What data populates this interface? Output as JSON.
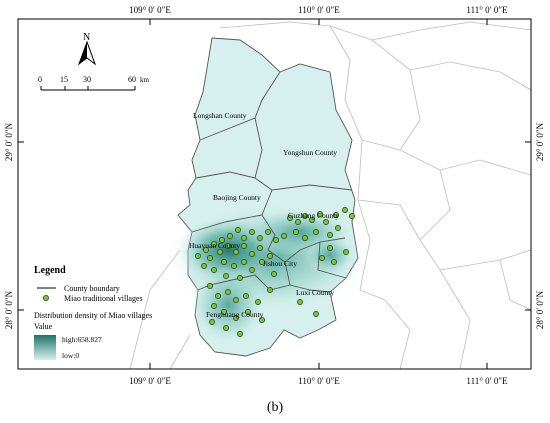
{
  "map": {
    "top_ticks": [
      "109° 0′ 0″E",
      "110° 0′ 0″E",
      "111° 0′ 0″E"
    ],
    "bottom_ticks": [
      "109° 0′ 0″E",
      "110° 0′ 0″E",
      "111° 0′ 0″E"
    ],
    "left_ticks": [
      "29° 0′ 0″N",
      "28° 0′ 0″N"
    ],
    "right_ticks": [
      "29° 0′ 0″N",
      "28° 0′ 0″N"
    ],
    "north_arrow_label": "N",
    "scalebar": {
      "ticks": [
        "0",
        "15",
        "30",
        "60"
      ],
      "unit": "km"
    },
    "counties": {
      "longshan": "Longshan County",
      "yongshun": "Yongshun County",
      "baojing": "Baojing County",
      "guzhang": "Guzhang County",
      "huayuan": "Huayuan County",
      "jishou": "Jishou City",
      "luxi": "Luxi County",
      "fenghuang": "Fenghuang County"
    },
    "legend": {
      "title": "Legend",
      "boundary": "County boundary",
      "villages": "Miao traditional villages",
      "density_title": "Distribution density of Miao villages",
      "value_label": "Value",
      "high": "high:658.827",
      "low": "low:0"
    },
    "colors": {
      "region_fill": "#d6f0ed",
      "density_high": "#1f7468",
      "density_low": "#d6f0ed",
      "village_dot": "#7dc23a",
      "boundary": "#555555",
      "outside_boundary": "#bdbdbd"
    }
  },
  "caption": "(b)"
}
